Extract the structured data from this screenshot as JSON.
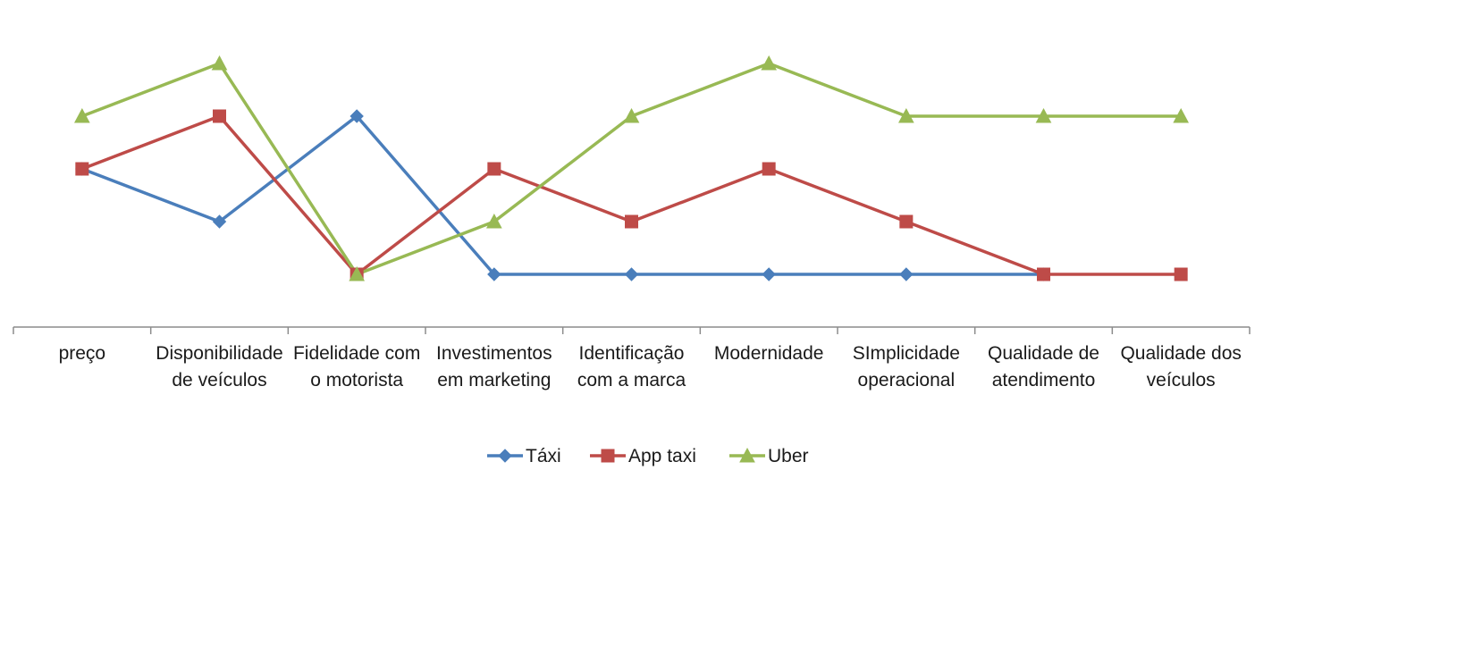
{
  "chart_data": {
    "type": "line",
    "categories": [
      [
        "preço"
      ],
      [
        "Disponibilidade",
        "de veículos"
      ],
      [
        "Fidelidade com",
        "o motorista"
      ],
      [
        "Investimentos",
        "em marketing"
      ],
      [
        "Identificação",
        "com a marca"
      ],
      [
        "Modernidade"
      ],
      [
        "SImplicidade",
        "operacional"
      ],
      [
        "Qualidade de",
        "atendimento"
      ],
      [
        "Qualidade dos",
        "veículos"
      ]
    ],
    "series": [
      {
        "name": "Táxi",
        "marker": "diamond",
        "color": "#4a7ebb",
        "values": [
          3,
          2,
          4,
          1,
          1,
          1,
          1,
          1,
          null
        ]
      },
      {
        "name": "App taxi",
        "marker": "square",
        "color": "#be4b48",
        "values": [
          3,
          4,
          1,
          3,
          2,
          3,
          2,
          1,
          1
        ]
      },
      {
        "name": "Uber",
        "marker": "triangle",
        "color": "#98b954",
        "values": [
          4,
          5,
          1,
          2,
          4,
          5,
          4,
          4,
          4
        ]
      }
    ],
    "ylim": [
      0,
      5
    ],
    "grid": false,
    "legend_position": "bottom"
  }
}
